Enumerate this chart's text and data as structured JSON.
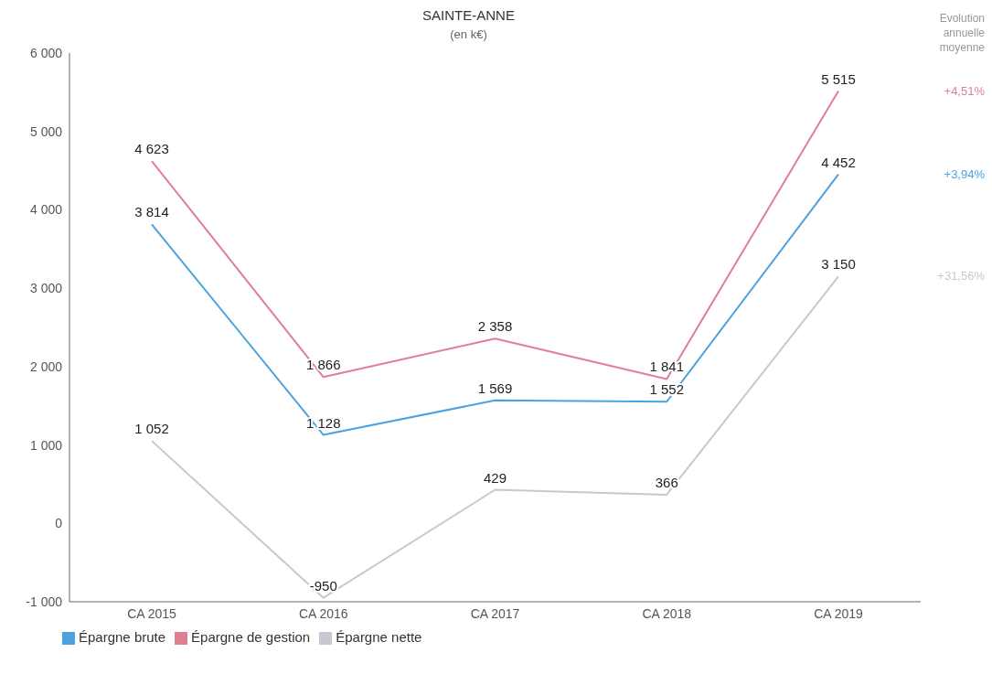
{
  "chart_data": {
    "type": "line",
    "title": "SAINTE-ANNE",
    "subtitle": "(en k€)",
    "categories": [
      "CA 2015",
      "CA 2016",
      "CA 2017",
      "CA 2018",
      "CA 2019"
    ],
    "series": [
      {
        "name": "Épargne de gestion",
        "color": "#e07f94",
        "values": [
          4623,
          1866,
          2358,
          1841,
          5515
        ],
        "value_labels": [
          "4 623",
          "1 866",
          "2 358",
          "1 841",
          "5 515"
        ]
      },
      {
        "name": "Épargne brute",
        "color": "#4aa3df",
        "values": [
          3814,
          1128,
          1569,
          1552,
          4452
        ],
        "value_labels": [
          "3 814",
          "1 128",
          "1 569",
          "1 552",
          "4 452"
        ]
      },
      {
        "name": "Épargne nette",
        "color": "#c8c8d4",
        "values": [
          1052,
          -950,
          429,
          366,
          3150
        ],
        "value_labels": [
          "1 052",
          "-950",
          "429",
          "366",
          "3 150"
        ]
      }
    ],
    "ylim": [
      -1000,
      6000
    ],
    "yticks": [
      {
        "value": -1000,
        "label": "-1 000"
      },
      0,
      {
        "value": 1000,
        "label": "1 000"
      },
      {
        "value": 2000,
        "label": "2 000"
      },
      {
        "value": 3000,
        "label": "3 000"
      },
      {
        "value": 4000,
        "label": "4 000"
      },
      {
        "value": 5000,
        "label": "5 000"
      },
      {
        "value": 6000,
        "label": "6 000"
      }
    ],
    "annotations": [
      "Evolution annuelle moyenne",
      "+4,51%",
      "+3,94%",
      "+31,56%"
    ],
    "grid": false,
    "legend": "bottom left",
    "marker": "none",
    "line_style": "solid"
  }
}
